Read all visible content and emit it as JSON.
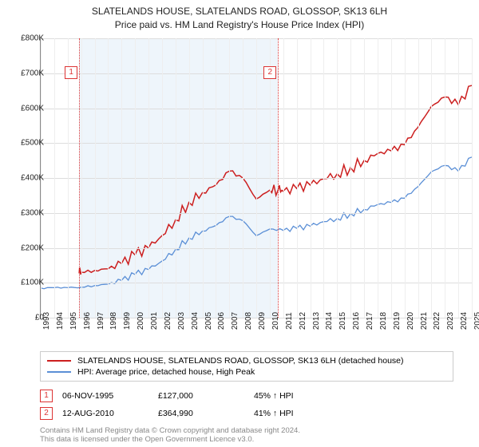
{
  "title": {
    "line1": "SLATELANDS HOUSE, SLATELANDS ROAD, GLOSSOP, SK13 6LH",
    "line2": "Price paid vs. HM Land Registry's House Price Index (HPI)"
  },
  "chart": {
    "type": "line",
    "xlim": [
      1993,
      2025
    ],
    "ylim": [
      0,
      800000
    ],
    "ytick_step": 100000,
    "y_ticks": [
      "£0",
      "£100K",
      "£200K",
      "£300K",
      "£400K",
      "£500K",
      "£600K",
      "£700K",
      "£800K"
    ],
    "x_ticks": [
      "1993",
      "1994",
      "1995",
      "1996",
      "1997",
      "1998",
      "1999",
      "2000",
      "2001",
      "2002",
      "2003",
      "2004",
      "2005",
      "2006",
      "2007",
      "2008",
      "2009",
      "2010",
      "2011",
      "2012",
      "2013",
      "2014",
      "2015",
      "2016",
      "2017",
      "2018",
      "2019",
      "2020",
      "2021",
      "2022",
      "2023",
      "2024",
      "2025"
    ],
    "background_color": "#ffffff",
    "grid_color": "#dddddd",
    "minor_grid_color": "#eeeeee",
    "shade_start": 1995.85,
    "shade_end": 2010.62,
    "shade_color": "#eaf2fa",
    "markers": [
      {
        "n": "1",
        "x": 1995.85,
        "badge_y": 35
      },
      {
        "n": "2",
        "x": 2010.62,
        "badge_y": 35
      }
    ],
    "series": [
      {
        "name": "property",
        "color": "#cc1f1f",
        "width": 1.5,
        "points": [
          [
            1995.85,
            127000
          ],
          [
            1996,
            130000
          ],
          [
            1997,
            135000
          ],
          [
            1998,
            140000
          ],
          [
            1999,
            155000
          ],
          [
            2000,
            180000
          ],
          [
            2001,
            200000
          ],
          [
            2002,
            235000
          ],
          [
            2003,
            280000
          ],
          [
            2004,
            330000
          ],
          [
            2005,
            358000
          ],
          [
            2006,
            380000
          ],
          [
            2007,
            420000
          ],
          [
            2008,
            400000
          ],
          [
            2009,
            340000
          ],
          [
            2010,
            365000
          ],
          [
            2010.62,
            364990
          ],
          [
            2011,
            362000
          ],
          [
            2012,
            370000
          ],
          [
            2013,
            380000
          ],
          [
            2014,
            398000
          ],
          [
            2015,
            412000
          ],
          [
            2016,
            430000
          ],
          [
            2017,
            450000
          ],
          [
            2018,
            470000
          ],
          [
            2019,
            478000
          ],
          [
            2020,
            495000
          ],
          [
            2021,
            545000
          ],
          [
            2022,
            605000
          ],
          [
            2023,
            632000
          ],
          [
            2024,
            610000
          ],
          [
            2025,
            665000
          ]
        ]
      },
      {
        "name": "hpi",
        "color": "#5b8fd6",
        "width": 1.3,
        "points": [
          [
            1993,
            85000
          ],
          [
            1994,
            86000
          ],
          [
            1995,
            86000
          ],
          [
            1996,
            87000
          ],
          [
            1997,
            92000
          ],
          [
            1998,
            96000
          ],
          [
            1999,
            107000
          ],
          [
            2000,
            124000
          ],
          [
            2001,
            138000
          ],
          [
            2002,
            162000
          ],
          [
            2003,
            195000
          ],
          [
            2004,
            228000
          ],
          [
            2005,
            248000
          ],
          [
            2006,
            264000
          ],
          [
            2007,
            290000
          ],
          [
            2008,
            278000
          ],
          [
            2009,
            235000
          ],
          [
            2010,
            254000
          ],
          [
            2011,
            250000
          ],
          [
            2012,
            256000
          ],
          [
            2013,
            262000
          ],
          [
            2014,
            275000
          ],
          [
            2015,
            284000
          ],
          [
            2016,
            298000
          ],
          [
            2017,
            310000
          ],
          [
            2018,
            324000
          ],
          [
            2019,
            330000
          ],
          [
            2020,
            342000
          ],
          [
            2021,
            375000
          ],
          [
            2022,
            418000
          ],
          [
            2023,
            436000
          ],
          [
            2024,
            420000
          ],
          [
            2025,
            460000
          ]
        ]
      }
    ]
  },
  "legend": {
    "items": [
      {
        "color": "#cc1f1f",
        "label": "SLATELANDS HOUSE, SLATELANDS ROAD, GLOSSOP, SK13 6LH (detached house)"
      },
      {
        "color": "#5b8fd6",
        "label": "HPI: Average price, detached house, High Peak"
      }
    ]
  },
  "sales": [
    {
      "n": "1",
      "date": "06-NOV-1995",
      "price": "£127,000",
      "vs_hpi": "45% ↑ HPI"
    },
    {
      "n": "2",
      "date": "12-AUG-2010",
      "price": "£364,990",
      "vs_hpi": "41% ↑ HPI"
    }
  ],
  "footer": {
    "line1": "Contains HM Land Registry data © Crown copyright and database right 2024.",
    "line2": "This data is licensed under the Open Government Licence v3.0."
  }
}
